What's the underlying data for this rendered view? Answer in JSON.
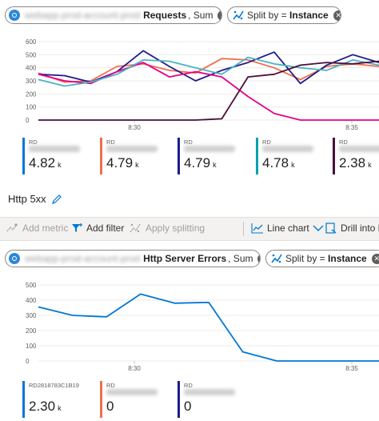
{
  "chart1": {
    "scope_pill": {
      "resource_blurred": "webapp-prod-account-prod",
      "metric": "Requests",
      "aggregation": ", Sum"
    },
    "split_pill": {
      "prefix": "Split by = ",
      "value": "Instance"
    },
    "chart_data": {
      "type": "line",
      "x": [
        "t0",
        "t1",
        "t2",
        "t3",
        "t4",
        "t5",
        "t6",
        "t7",
        "t8",
        "t9",
        "t10",
        "t11",
        "t12",
        "t13"
      ],
      "x_tick_labels": [
        "8:30",
        "8:35"
      ],
      "y_ticks": [
        "600",
        "500",
        "400",
        "300",
        "200",
        "100",
        "0"
      ],
      "ylim": [
        0,
        600
      ],
      "grid": true,
      "series": [
        {
          "color": "#f06f4c",
          "values": [
            360,
            290,
            300,
            410,
            430,
            380,
            360,
            470,
            460,
            400,
            310,
            410,
            430,
            410
          ]
        },
        {
          "color": "#1c1c8c",
          "values": [
            350,
            340,
            290,
            370,
            530,
            410,
            300,
            380,
            440,
            520,
            280,
            420,
            500,
            440
          ]
        },
        {
          "color": "#e3008c",
          "values": [
            350,
            300,
            280,
            370,
            440,
            330,
            370,
            330,
            180,
            50,
            0,
            0,
            0,
            0
          ]
        },
        {
          "color": "#4ab3c4",
          "values": [
            310,
            260,
            290,
            350,
            460,
            450,
            400,
            350,
            480,
            430,
            400,
            380,
            460,
            420
          ]
        },
        {
          "color": "#4b0d3c",
          "values": [
            0,
            0,
            0,
            0,
            0,
            0,
            0,
            10,
            330,
            350,
            420,
            440,
            430,
            450
          ]
        }
      ]
    },
    "legend": [
      {
        "name": "RD",
        "value": "4.82",
        "unit": "k",
        "color": "#0078d4"
      },
      {
        "name": "RD",
        "value": "4.79",
        "unit": "k",
        "color": "#f06f4c"
      },
      {
        "name": "RD",
        "value": "4.79",
        "unit": "k",
        "color": "#1c1c8c"
      },
      {
        "name": "RD",
        "value": "4.78",
        "unit": "k",
        "color": "#00a2ad"
      },
      {
        "name": "RD",
        "value": "2.38",
        "unit": "k",
        "color": "#4b0d3c"
      }
    ]
  },
  "section": {
    "title": "Http 5xx"
  },
  "toolbar": {
    "add_metric": "Add metric",
    "add_filter": "Add filter",
    "apply_splitting": "Apply splitting",
    "line_chart": "Line chart",
    "drill_into_logs": "Drill into Lo"
  },
  "chart2": {
    "scope_pill": {
      "resource_blurred": "webapp-prod-account-prod",
      "metric": "Http Server Errors",
      "aggregation": ", Sum"
    },
    "split_pill": {
      "prefix": "Split by = ",
      "value": "Instance"
    },
    "chart_data": {
      "type": "line",
      "x": [
        "t0",
        "t1",
        "t2",
        "t3",
        "t4",
        "t5",
        "t6",
        "t7",
        "t8",
        "t9",
        "t10"
      ],
      "x_tick_labels": [
        "8:30",
        "8:35"
      ],
      "y_ticks": [
        "500",
        "400",
        "300",
        "200",
        "100",
        "0"
      ],
      "ylim": [
        0,
        500
      ],
      "grid": true,
      "series": [
        {
          "color": "#0078d4",
          "values": [
            355,
            300,
            290,
            440,
            380,
            385,
            60,
            0,
            0,
            0,
            0
          ]
        }
      ]
    },
    "legend": [
      {
        "name": "RD2818783C1B19",
        "value": "2.30",
        "unit": "k",
        "color": "#0078d4"
      },
      {
        "name": "RD",
        "value": "0",
        "unit": "",
        "color": "#f06f4c"
      },
      {
        "name": "RD",
        "value": "0",
        "unit": "",
        "color": "#1c1c8c"
      }
    ]
  },
  "colors": {
    "accent": "#0078d4",
    "toolbar_bg": "#f3f2f1"
  }
}
